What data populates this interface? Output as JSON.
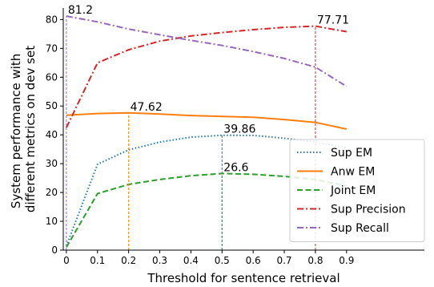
{
  "chart_data": {
    "type": "line",
    "title": "",
    "xlabel": "Threshold for sentence retrieval",
    "ylabel_lines": [
      "System performance with",
      "different metrics on dev set"
    ],
    "xlim": [
      -0.01,
      1.15
    ],
    "ylim": [
      0,
      84
    ],
    "x_ticks": [
      0,
      0.1,
      0.2,
      0.3,
      0.4,
      0.5,
      0.6,
      0.7,
      0.8,
      0.9
    ],
    "x_tick_labels": [
      "0",
      "0.1",
      "0.2",
      "0.3",
      "0.4",
      "0.5",
      "0.6",
      "0.7",
      "0.8",
      "0.9"
    ],
    "y_ticks": [
      0,
      10,
      20,
      30,
      40,
      50,
      60,
      70,
      80
    ],
    "y_tick_labels": [
      "0",
      "10",
      "20",
      "30",
      "40",
      "50",
      "60",
      "70",
      "80"
    ],
    "x": [
      0,
      0.1,
      0.2,
      0.3,
      0.4,
      0.5,
      0.6,
      0.7,
      0.8,
      0.9
    ],
    "series": [
      {
        "name": "Sup EM",
        "color": "#1f77b4",
        "dash": "dotted",
        "values": [
          1.5,
          29.8,
          34.8,
          37.5,
          39.2,
          39.86,
          39.8,
          38.8,
          37.5,
          35.5
        ]
      },
      {
        "name": "Anw EM",
        "color": "#ff7f0e",
        "dash": "solid",
        "values": [
          46.8,
          47.4,
          47.62,
          47.2,
          46.7,
          46.4,
          46.1,
          45.3,
          44.3,
          42.0
        ]
      },
      {
        "name": "Joint EM",
        "color": "#2ca02c",
        "dash": "dashed",
        "values": [
          1.0,
          19.6,
          22.8,
          24.5,
          25.8,
          26.6,
          26.3,
          25.6,
          24.5,
          22.3
        ]
      },
      {
        "name": "Sup Precision",
        "color": "#d62728",
        "dash": "dashdot",
        "values": [
          42.5,
          65.0,
          69.5,
          72.5,
          74.3,
          75.5,
          76.5,
          77.3,
          77.71,
          75.8
        ]
      },
      {
        "name": "Sup Recall",
        "color": "#9467bd",
        "dash": "dashdot",
        "values": [
          81.2,
          79.2,
          76.7,
          74.7,
          72.8,
          71.0,
          68.9,
          66.5,
          63.5,
          56.8
        ]
      }
    ],
    "annotations": [
      {
        "text": "81.2",
        "x": 0,
        "y": 81.2,
        "color": "#9467bd"
      },
      {
        "text": "47.62",
        "x": 0.2,
        "y": 47.62,
        "color": "#ff7f0e"
      },
      {
        "text": "39.86",
        "x": 0.5,
        "y": 39.86,
        "color": "#1f77b4"
      },
      {
        "text": "26.6",
        "x": 0.5,
        "y": 26.6,
        "color": "#2ca02c"
      },
      {
        "text": "77.71",
        "x": 0.8,
        "y": 77.71,
        "color": "#d62728"
      }
    ],
    "legend_placement": "lower-right",
    "grid": false
  }
}
